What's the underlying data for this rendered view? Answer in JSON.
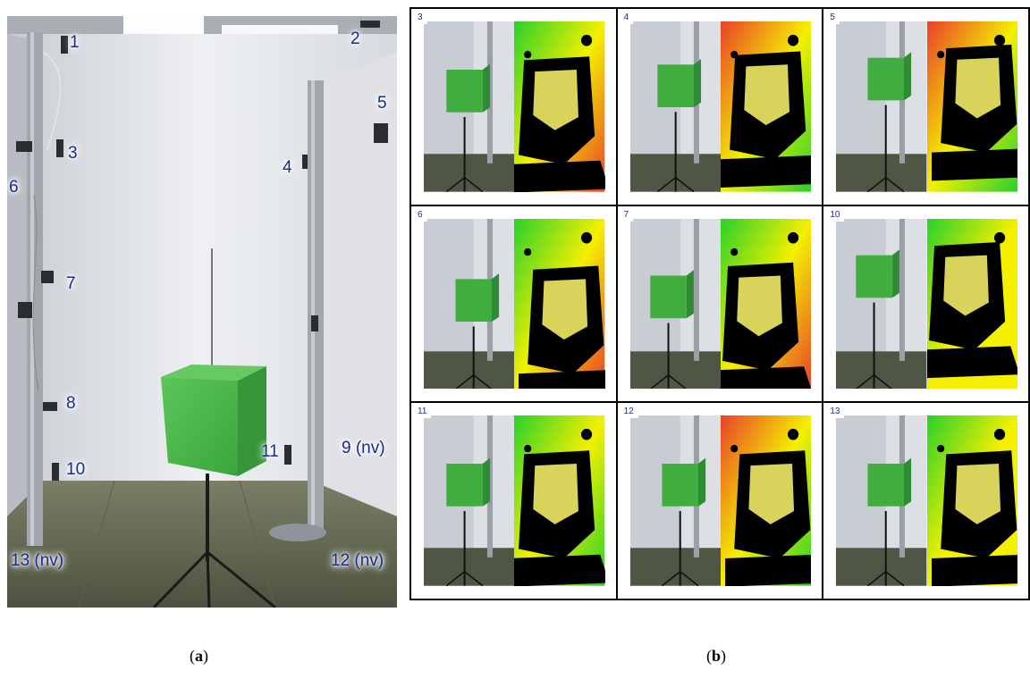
{
  "figure": {
    "panel_a": {
      "caption_open": "(",
      "caption_letter": "a",
      "caption_close": ")",
      "camera_labels": [
        "1",
        "2",
        "3",
        "4",
        "5",
        "6",
        "7",
        "8",
        "9 (nv)",
        "10",
        "11",
        "12 (nv)",
        "13 (nv)"
      ]
    },
    "panel_b": {
      "caption_open": "(",
      "caption_letter": "b",
      "caption_close": ")",
      "cells": [
        {
          "label": "3"
        },
        {
          "label": "4"
        },
        {
          "label": "5"
        },
        {
          "label": "6"
        },
        {
          "label": "7"
        },
        {
          "label": "10"
        },
        {
          "label": "11"
        },
        {
          "label": "12"
        },
        {
          "label": "13"
        }
      ]
    }
  },
  "colors": {
    "label_text": "#1a2c8c",
    "cube_green": "#3fae3f",
    "depth_yellow": "#f4f000",
    "depth_red": "#e8402a",
    "depth_green": "#29d12a"
  }
}
